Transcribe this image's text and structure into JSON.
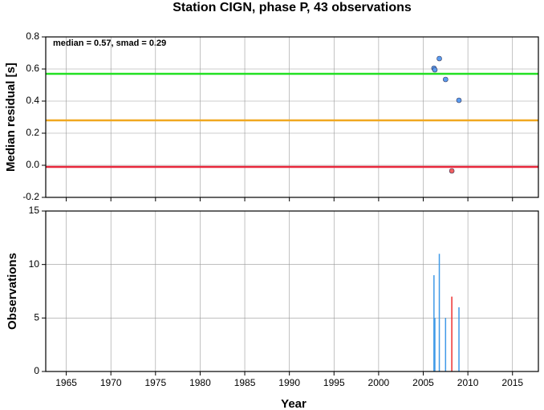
{
  "chart_data": [
    {
      "type": "scatter",
      "title": "Station CIGN, phase P, 43 observations",
      "ylabel": "Median residual [s]",
      "annotation": "median = 0.57, smad = 0.29",
      "xlim": [
        1962.7,
        2017.9
      ],
      "xticks": [
        1965,
        1970,
        1975,
        1980,
        1985,
        1990,
        1995,
        2000,
        2005,
        2010,
        2015
      ],
      "ylim": [
        -0.2,
        0.8
      ],
      "yticks": [
        -0.2,
        {
          "value": 0,
          "label": "0.0"
        },
        0.2,
        0.4,
        0.6,
        0.8
      ],
      "grid": true,
      "hlines": [
        {
          "value": 0.57,
          "color": "#22e022"
        },
        {
          "value": 0.28,
          "color": "#f0a820"
        },
        {
          "value": -0.01,
          "color": "#e8283c"
        }
      ],
      "series": [
        {
          "color": "#5a9cf0",
          "x": [
            2006.2,
            2006.3,
            2006.8,
            2007.5,
            2009.0
          ],
          "values": [
            0.605,
            0.595,
            0.665,
            0.535,
            0.405
          ]
        },
        {
          "color": "#f06060",
          "x": [
            2008.2
          ],
          "values": [
            -0.035
          ]
        }
      ]
    },
    {
      "type": "bar",
      "xlabel": "Year",
      "ylabel": "Observations",
      "xlim": [
        1962.7,
        2017.9
      ],
      "xticks": [
        1965,
        1970,
        1975,
        1980,
        1985,
        1990,
        1995,
        2000,
        2005,
        2010,
        2015
      ],
      "ylim": [
        0,
        15
      ],
      "yticks": [
        0,
        5,
        10,
        15
      ],
      "grid": true,
      "series": [
        {
          "color": "#3f9ae8",
          "x": [
            2006.2,
            2006.3,
            2006.8,
            2007.5,
            2009.0
          ],
          "values": [
            9,
            5,
            11,
            5,
            6
          ]
        },
        {
          "color": "#ee3030",
          "x": [
            2008.2
          ],
          "values": [
            7
          ]
        }
      ]
    }
  ]
}
